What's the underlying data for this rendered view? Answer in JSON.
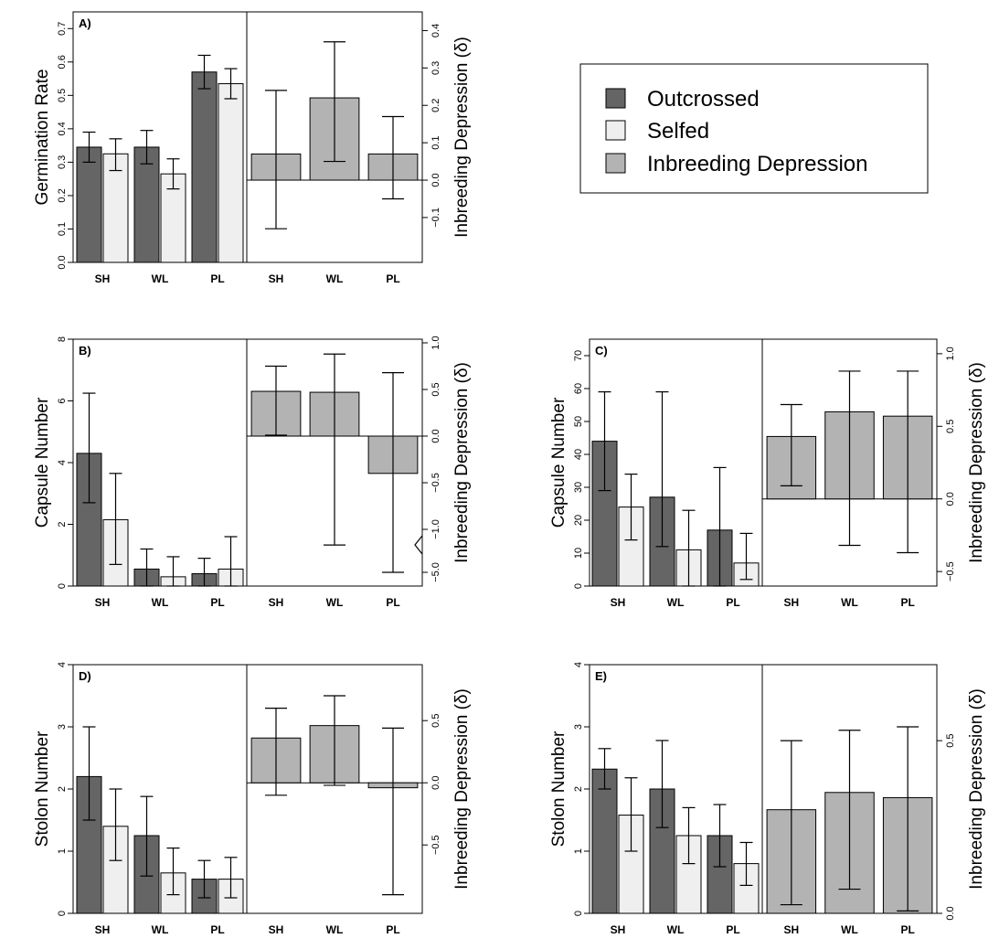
{
  "colors": {
    "outcrossed": "#656565",
    "selfed": "#efefef",
    "inbreeding": "#b3b3b3"
  },
  "legend": {
    "outcrossed": "Outcrossed",
    "selfed": "Selfed",
    "inbreeding": "Inbreeding Depression"
  },
  "chart_data": [
    {
      "id": "A",
      "panel_label": "A)",
      "type": "bar",
      "categories": [
        "SH",
        "WL",
        "PL"
      ],
      "left": {
        "ylabel": "Germination Rate",
        "ylim": [
          0,
          0.75
        ],
        "ticks": [
          0,
          0.1,
          0.2,
          0.3,
          0.4,
          0.5,
          0.6,
          0.7
        ],
        "tick_labels": [
          "0.0",
          "0.1",
          "0.2",
          "0.3",
          "0.4",
          "0.5",
          "0.6",
          "0.7"
        ],
        "series": [
          {
            "name": "Outcrossed",
            "values": [
              0.345,
              0.345,
              0.57
            ],
            "lower": [
              0.3,
              0.295,
              0.52
            ],
            "upper": [
              0.39,
              0.395,
              0.62
            ]
          },
          {
            "name": "Selfed",
            "values": [
              0.325,
              0.265,
              0.535
            ],
            "lower": [
              0.275,
              0.22,
              0.49
            ],
            "upper": [
              0.37,
              0.31,
              0.58
            ]
          }
        ]
      },
      "right": {
        "ylabel": "Inbreeding Depression (δ)",
        "ylim": [
          -0.22,
          0.45
        ],
        "ticks": [
          -0.1,
          0,
          0.1,
          0.2,
          0.3,
          0.4
        ],
        "tick_labels": [
          "−0.1",
          "0.0",
          "0.1",
          "0.2",
          "0.3",
          "0.4"
        ],
        "values": [
          0.07,
          0.22,
          0.07
        ],
        "lower": [
          -0.13,
          0.05,
          -0.05
        ],
        "upper": [
          0.24,
          0.37,
          0.17
        ]
      }
    },
    {
      "id": "B",
      "panel_label": "B)",
      "type": "bar",
      "categories": [
        "SH",
        "WL",
        "PL"
      ],
      "left": {
        "ylabel": "Capsule Number",
        "ylim": [
          0,
          8
        ],
        "ticks": [
          0,
          2,
          4,
          6,
          8
        ],
        "tick_labels": [
          "0",
          "2",
          "4",
          "6",
          "8"
        ],
        "series": [
          {
            "name": "Outcrossed",
            "values": [
              4.3,
              0.55,
              0.4
            ],
            "lower": [
              2.7,
              0.0,
              0.0
            ],
            "upper": [
              6.25,
              1.2,
              0.9
            ]
          },
          {
            "name": "Selfed",
            "values": [
              2.15,
              0.3,
              0.55
            ],
            "lower": [
              0.7,
              0.0,
              0.0
            ],
            "upper": [
              3.65,
              0.95,
              1.6
            ]
          }
        ]
      },
      "right": {
        "ylabel": "Inbreeding Depression (δ)",
        "axis_break": "between -1.0 and -5.0",
        "ticks": [
          1.0,
          0.5,
          0,
          -0.5,
          -1.0,
          -5.0
        ],
        "tick_labels": [
          "1.0",
          "0.5",
          "0.0",
          "−0.5",
          "−1.0",
          "−5.0"
        ],
        "values": [
          0.48,
          0.47,
          -0.4
        ],
        "lower": [
          0.01,
          -1.02,
          -5.0
        ],
        "upper": [
          0.75,
          0.88,
          0.68
        ]
      }
    },
    {
      "id": "C",
      "panel_label": "C)",
      "type": "bar",
      "categories": [
        "SH",
        "WL",
        "PL"
      ],
      "left": {
        "ylabel": "Capsule Number",
        "ylim": [
          0,
          75
        ],
        "ticks": [
          0,
          10,
          20,
          30,
          40,
          50,
          60,
          70
        ],
        "tick_labels": [
          "0",
          "10",
          "20",
          "30",
          "40",
          "50",
          "60",
          "70"
        ],
        "series": [
          {
            "name": "Outcrossed",
            "values": [
              44,
              27,
              17
            ],
            "lower": [
              29,
              12,
              0
            ],
            "upper": [
              59,
              59,
              36
            ]
          },
          {
            "name": "Selfed",
            "values": [
              24,
              11,
              7
            ],
            "lower": [
              14,
              0,
              2
            ],
            "upper": [
              34,
              23,
              16
            ]
          }
        ]
      },
      "right": {
        "ylabel": "Inbreeding Depression (δ)",
        "ylim": [
          -0.6,
          1.1
        ],
        "ticks": [
          -0.5,
          0,
          0.5,
          1.0
        ],
        "tick_labels": [
          "−0.5",
          "0.0",
          "0.5",
          "1.0"
        ],
        "values": [
          0.43,
          0.6,
          0.57
        ],
        "lower": [
          0.09,
          -0.32,
          -0.37
        ],
        "upper": [
          0.65,
          0.88,
          0.88
        ]
      }
    },
    {
      "id": "D",
      "panel_label": "D)",
      "type": "bar",
      "categories": [
        "SH",
        "WL",
        "PL"
      ],
      "left": {
        "ylabel": "Stolon Number",
        "ylim": [
          0,
          4
        ],
        "ticks": [
          0,
          1,
          2,
          3,
          4
        ],
        "tick_labels": [
          "0",
          "1",
          "2",
          "3",
          "4"
        ],
        "series": [
          {
            "name": "Outcrossed",
            "values": [
              2.2,
              1.25,
              0.55
            ],
            "lower": [
              1.5,
              0.6,
              0.25
            ],
            "upper": [
              3.0,
              1.88,
              0.85
            ]
          },
          {
            "name": "Selfed",
            "values": [
              1.4,
              0.65,
              0.55
            ],
            "lower": [
              0.85,
              0.3,
              0.25
            ],
            "upper": [
              2.0,
              1.05,
              0.9
            ]
          }
        ]
      },
      "right": {
        "ylabel": "Inbreeding Depression (δ)",
        "ylim": [
          -1.05,
          0.95
        ],
        "ticks": [
          -0.5,
          0,
          0.5
        ],
        "tick_labels": [
          "−0.5",
          "0.0",
          "0.5"
        ],
        "values": [
          0.36,
          0.46,
          -0.04
        ],
        "lower": [
          -0.1,
          -0.02,
          -0.9
        ],
        "upper": [
          0.6,
          0.7,
          0.44
        ]
      }
    },
    {
      "id": "E",
      "panel_label": "E)",
      "type": "bar",
      "categories": [
        "SH",
        "WL",
        "PL"
      ],
      "left": {
        "ylabel": "Stolon Number",
        "ylim": [
          0,
          4
        ],
        "ticks": [
          0,
          1,
          2,
          3,
          4
        ],
        "tick_labels": [
          "0",
          "1",
          "2",
          "3",
          "4"
        ],
        "series": [
          {
            "name": "Outcrossed",
            "values": [
              2.32,
              2.0,
              1.25
            ],
            "lower": [
              2.0,
              1.38,
              0.75
            ],
            "upper": [
              2.65,
              2.78,
              1.75
            ]
          },
          {
            "name": "Selfed",
            "values": [
              1.58,
              1.25,
              0.8
            ],
            "lower": [
              1.0,
              0.8,
              0.45
            ],
            "upper": [
              2.18,
              1.7,
              1.14
            ]
          }
        ]
      },
      "right": {
        "ylabel": "Inbreeding Depression (δ)",
        "ylim": [
          0,
          0.72
        ],
        "ticks": [
          0,
          0.5
        ],
        "tick_labels": [
          "0.0",
          "0.5"
        ],
        "values": [
          0.3,
          0.35,
          0.335
        ],
        "lower": [
          0.025,
          0.07,
          0.007
        ],
        "upper": [
          0.5,
          0.53,
          0.54
        ]
      }
    }
  ]
}
